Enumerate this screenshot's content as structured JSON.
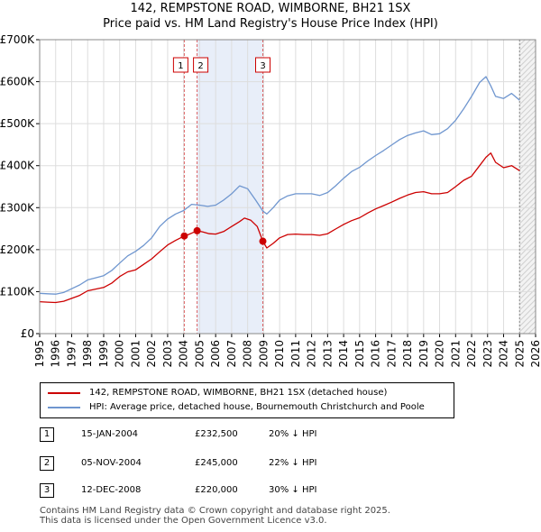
{
  "chart_data": {
    "type": "line",
    "title": "142, REMPSTONE ROAD, WIMBORNE, BH21 1SX",
    "subtitle": "Price paid vs. HM Land Registry's House Price Index (HPI)",
    "xlabel": "",
    "ylabel": "",
    "xlim": [
      1995,
      2026
    ],
    "ylim": [
      0,
      700000
    ],
    "x_ticks": [
      "1995",
      "1996",
      "1997",
      "1998",
      "1999",
      "2000",
      "2001",
      "2002",
      "2003",
      "2004",
      "2005",
      "2006",
      "2007",
      "2008",
      "2009",
      "2010",
      "2011",
      "2012",
      "2013",
      "2014",
      "2015",
      "2016",
      "2017",
      "2018",
      "2019",
      "2020",
      "2021",
      "2022",
      "2023",
      "2024",
      "2025",
      "2026"
    ],
    "y_ticks": [
      {
        "value": 0,
        "label": "£0"
      },
      {
        "value": 100000,
        "label": "£100K"
      },
      {
        "value": 200000,
        "label": "£200K"
      },
      {
        "value": 300000,
        "label": "£300K"
      },
      {
        "value": 400000,
        "label": "£400K"
      },
      {
        "value": 500000,
        "label": "£500K"
      },
      {
        "value": 600000,
        "label": "£600K"
      },
      {
        "value": 700000,
        "label": "£700K"
      }
    ],
    "grid": true,
    "series": [
      {
        "name": "142, REMPSTONE ROAD, WIMBORNE, BH21 1SX (detached house)",
        "color": "#cc0000",
        "x": [
          1995.0,
          1995.5,
          1996.0,
          1996.5,
          1997.0,
          1997.5,
          1998.0,
          1998.5,
          1999.0,
          1999.5,
          2000.0,
          2000.5,
          2001.0,
          2001.5,
          2002.0,
          2002.5,
          2003.0,
          2003.5,
          2004.04,
          2004.3,
          2004.6,
          2004.84,
          2005.2,
          2005.6,
          2006.0,
          2006.5,
          2007.0,
          2007.5,
          2007.8,
          2008.2,
          2008.6,
          2008.95,
          2009.2,
          2009.6,
          2010.0,
          2010.5,
          2011.0,
          2011.5,
          2012.0,
          2012.5,
          2013.0,
          2013.5,
          2014.0,
          2014.5,
          2015.0,
          2015.5,
          2016.0,
          2016.5,
          2017.0,
          2017.5,
          2018.0,
          2018.5,
          2019.0,
          2019.5,
          2020.0,
          2020.5,
          2021.0,
          2021.5,
          2022.0,
          2022.5,
          2022.9,
          2023.2,
          2023.5,
          2024.0,
          2024.5,
          2025.0
        ],
        "values": [
          76000,
          75000,
          74000,
          77000,
          84000,
          91000,
          102000,
          106000,
          110000,
          120000,
          136000,
          147000,
          152000,
          165000,
          178000,
          195000,
          211000,
          222000,
          232500,
          236000,
          241000,
          245000,
          242000,
          238000,
          237000,
          243000,
          255000,
          267000,
          275000,
          270000,
          255000,
          220000,
          204000,
          215000,
          228000,
          236000,
          237000,
          236000,
          236000,
          234000,
          238000,
          249000,
          260000,
          269000,
          276000,
          287000,
          297000,
          305000,
          313000,
          322000,
          330000,
          336000,
          338000,
          333000,
          333000,
          336000,
          350000,
          365000,
          375000,
          400000,
          420000,
          430000,
          408000,
          395000,
          400000,
          388000
        ]
      },
      {
        "name": "HPI: Average price, detached house, Bournemouth Christchurch and Poole",
        "color": "#6f96cf",
        "x": [
          1995.0,
          1995.5,
          1996.0,
          1996.5,
          1997.0,
          1997.5,
          1998.0,
          1998.5,
          1999.0,
          1999.5,
          2000.0,
          2000.5,
          2001.0,
          2001.5,
          2002.0,
          2002.5,
          2003.0,
          2003.5,
          2004.0,
          2004.5,
          2005.0,
          2005.5,
          2006.0,
          2006.5,
          2007.0,
          2007.5,
          2008.0,
          2008.5,
          2008.95,
          2009.2,
          2009.6,
          2010.0,
          2010.5,
          2011.0,
          2011.5,
          2012.0,
          2012.5,
          2013.0,
          2013.5,
          2014.0,
          2014.5,
          2015.0,
          2015.5,
          2016.0,
          2016.5,
          2017.0,
          2017.5,
          2018.0,
          2018.5,
          2019.0,
          2019.5,
          2020.0,
          2020.5,
          2021.0,
          2021.5,
          2022.0,
          2022.5,
          2022.9,
          2023.2,
          2023.5,
          2024.0,
          2024.5,
          2025.0
        ],
        "values": [
          96000,
          95000,
          94000,
          98000,
          107000,
          116000,
          128000,
          133000,
          138000,
          150000,
          168000,
          185000,
          196000,
          210000,
          228000,
          255000,
          273000,
          285000,
          293000,
          308000,
          306000,
          303000,
          306000,
          318000,
          333000,
          352000,
          345000,
          318000,
          292000,
          285000,
          300000,
          318000,
          328000,
          333000,
          333000,
          333000,
          329000,
          336000,
          352000,
          370000,
          386000,
          396000,
          411000,
          424000,
          436000,
          449000,
          462000,
          472000,
          478000,
          483000,
          474000,
          476000,
          488000,
          508000,
          535000,
          565000,
          598000,
          612000,
          590000,
          565000,
          560000,
          572000,
          556000
        ]
      }
    ],
    "annotations": [
      {
        "label": "1",
        "x": 2004.04
      },
      {
        "label": "2",
        "x": 2004.84
      },
      {
        "label": "3",
        "x": 2008.95
      }
    ],
    "sale_points": [
      {
        "x": 2004.04,
        "value": 232500
      },
      {
        "x": 2004.84,
        "value": 245000
      },
      {
        "x": 2008.95,
        "value": 220000
      }
    ],
    "forecast_from": 2025.0
  },
  "legend": {
    "items": [
      {
        "label": "142, REMPSTONE ROAD, WIMBORNE, BH21 1SX (detached house)",
        "color": "#cc0000"
      },
      {
        "label": "HPI: Average price, detached house, Bournemouth Christchurch and Poole",
        "color": "#6f96cf"
      }
    ]
  },
  "sales": [
    {
      "num": "1",
      "date": "15-JAN-2004",
      "price": "£232,500",
      "hpi": "20% ↓ HPI"
    },
    {
      "num": "2",
      "date": "05-NOV-2004",
      "price": "£245,000",
      "hpi": "22% ↓ HPI"
    },
    {
      "num": "3",
      "date": "12-DEC-2008",
      "price": "£220,000",
      "hpi": "30% ↓ HPI"
    }
  ],
  "footer": {
    "line1": "Contains HM Land Registry data © Crown copyright and database right 2025.",
    "line2": "This data is licensed under the Open Government Licence v3.0."
  }
}
